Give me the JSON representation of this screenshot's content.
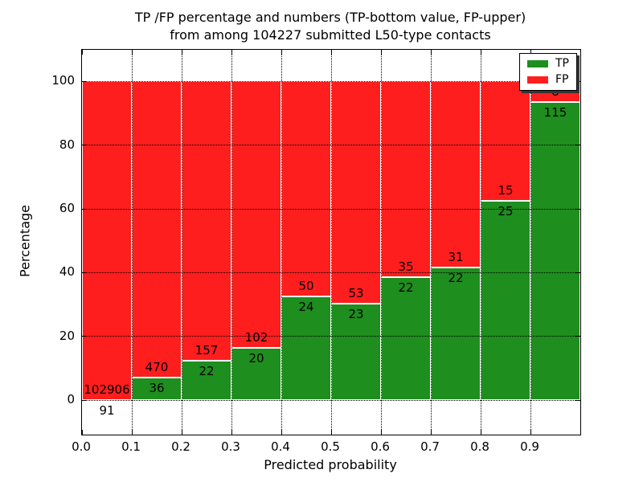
{
  "chart_data": {
    "type": "bar",
    "stacked": true,
    "title": [
      "TP /FP percentage and numbers (TP-bottom value, FP-upper)",
      "from among 104227 submitted L50-type contacts"
    ],
    "xlabel": "Predicted probability",
    "ylabel": "Percentage",
    "x_tick_labels": [
      "0.0",
      "0.1",
      "0.2",
      "0.3",
      "0.4",
      "0.5",
      "0.6",
      "0.7",
      "0.8",
      "0.9"
    ],
    "y_tick_labels": [
      "0",
      "20",
      "40",
      "60",
      "80",
      "100"
    ],
    "y_tick_values": [
      0,
      20,
      40,
      60,
      80,
      100
    ],
    "xlim": [
      0.0,
      1.0
    ],
    "ylim": [
      -11,
      110
    ],
    "bin_width": 0.1,
    "grid": "dotted",
    "legend_position": "upper right",
    "total_submitted": 104227,
    "series": [
      {
        "name": "TP",
        "color": "#1e8e1e"
      },
      {
        "name": "FP",
        "color": "#ff1e1e"
      }
    ],
    "bins": [
      {
        "x_start": 0.0,
        "x_end": 0.1,
        "tp": 91,
        "fp": 102906
      },
      {
        "x_start": 0.1,
        "x_end": 0.2,
        "tp": 36,
        "fp": 470
      },
      {
        "x_start": 0.2,
        "x_end": 0.3,
        "tp": 22,
        "fp": 157
      },
      {
        "x_start": 0.3,
        "x_end": 0.4,
        "tp": 20,
        "fp": 102
      },
      {
        "x_start": 0.4,
        "x_end": 0.5,
        "tp": 24,
        "fp": 50
      },
      {
        "x_start": 0.5,
        "x_end": 0.6,
        "tp": 23,
        "fp": 53
      },
      {
        "x_start": 0.6,
        "x_end": 0.7,
        "tp": 22,
        "fp": 35
      },
      {
        "x_start": 0.7,
        "x_end": 0.8,
        "tp": 22,
        "fp": 31
      },
      {
        "x_start": 0.8,
        "x_end": 0.9,
        "tp": 25,
        "fp": 15
      },
      {
        "x_start": 0.9,
        "x_end": 1.0,
        "tp": 115,
        "fp": 8
      }
    ]
  }
}
